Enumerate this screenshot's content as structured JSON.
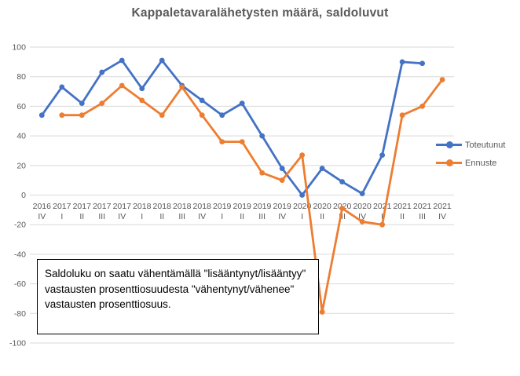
{
  "title": "Kappaletavaralähetysten määrä, saldoluvut",
  "annotation": {
    "text": "Saldoluku on saatu vähentämällä \"lisääntynyt/lisääntyy\" vastausten prosenttiosuudesta \"vähentynyt/vähenee\" vastausten prosenttiosuus."
  },
  "legend": {
    "items": [
      {
        "label": "Toteutunut",
        "color": "#4472C4"
      },
      {
        "label": "Ennuste",
        "color": "#ED7D31"
      }
    ]
  },
  "chart_data": {
    "type": "line",
    "title": "Kappaletavaralähetysten määrä, saldoluvut",
    "categories": [
      "2016 IV",
      "2017 I",
      "2017 II",
      "2017 III",
      "2017 IV",
      "2018 I",
      "2018 II",
      "2018 III",
      "2018 IV",
      "2019 I",
      "2019 II",
      "2019 III",
      "2019 IV",
      "2020 I",
      "2020 II",
      "2020 III",
      "2020 IV",
      "2021 I",
      "2021 II",
      "2021 III",
      "2021 IV"
    ],
    "series": [
      {
        "name": "Toteutunut",
        "color": "#4472C4",
        "values": [
          54,
          73,
          62,
          83,
          91,
          72,
          91,
          74,
          64,
          54,
          62,
          40,
          18,
          0,
          18,
          9,
          1,
          27,
          90,
          89,
          null
        ]
      },
      {
        "name": "Ennuste",
        "color": "#ED7D31",
        "values": [
          null,
          54,
          54,
          62,
          74,
          64,
          54,
          73,
          54,
          36,
          36,
          15,
          10,
          27,
          -79,
          -9,
          -18,
          -20,
          54,
          60,
          78
        ]
      }
    ],
    "xlabel": "",
    "ylabel": "",
    "ylim": [
      -100,
      100
    ],
    "ytick_step": 20,
    "grid": true,
    "legend_position": "right",
    "gridline_color": "#D9D9D9",
    "axis_label_color": "#595959",
    "title_color": "#595959"
  }
}
